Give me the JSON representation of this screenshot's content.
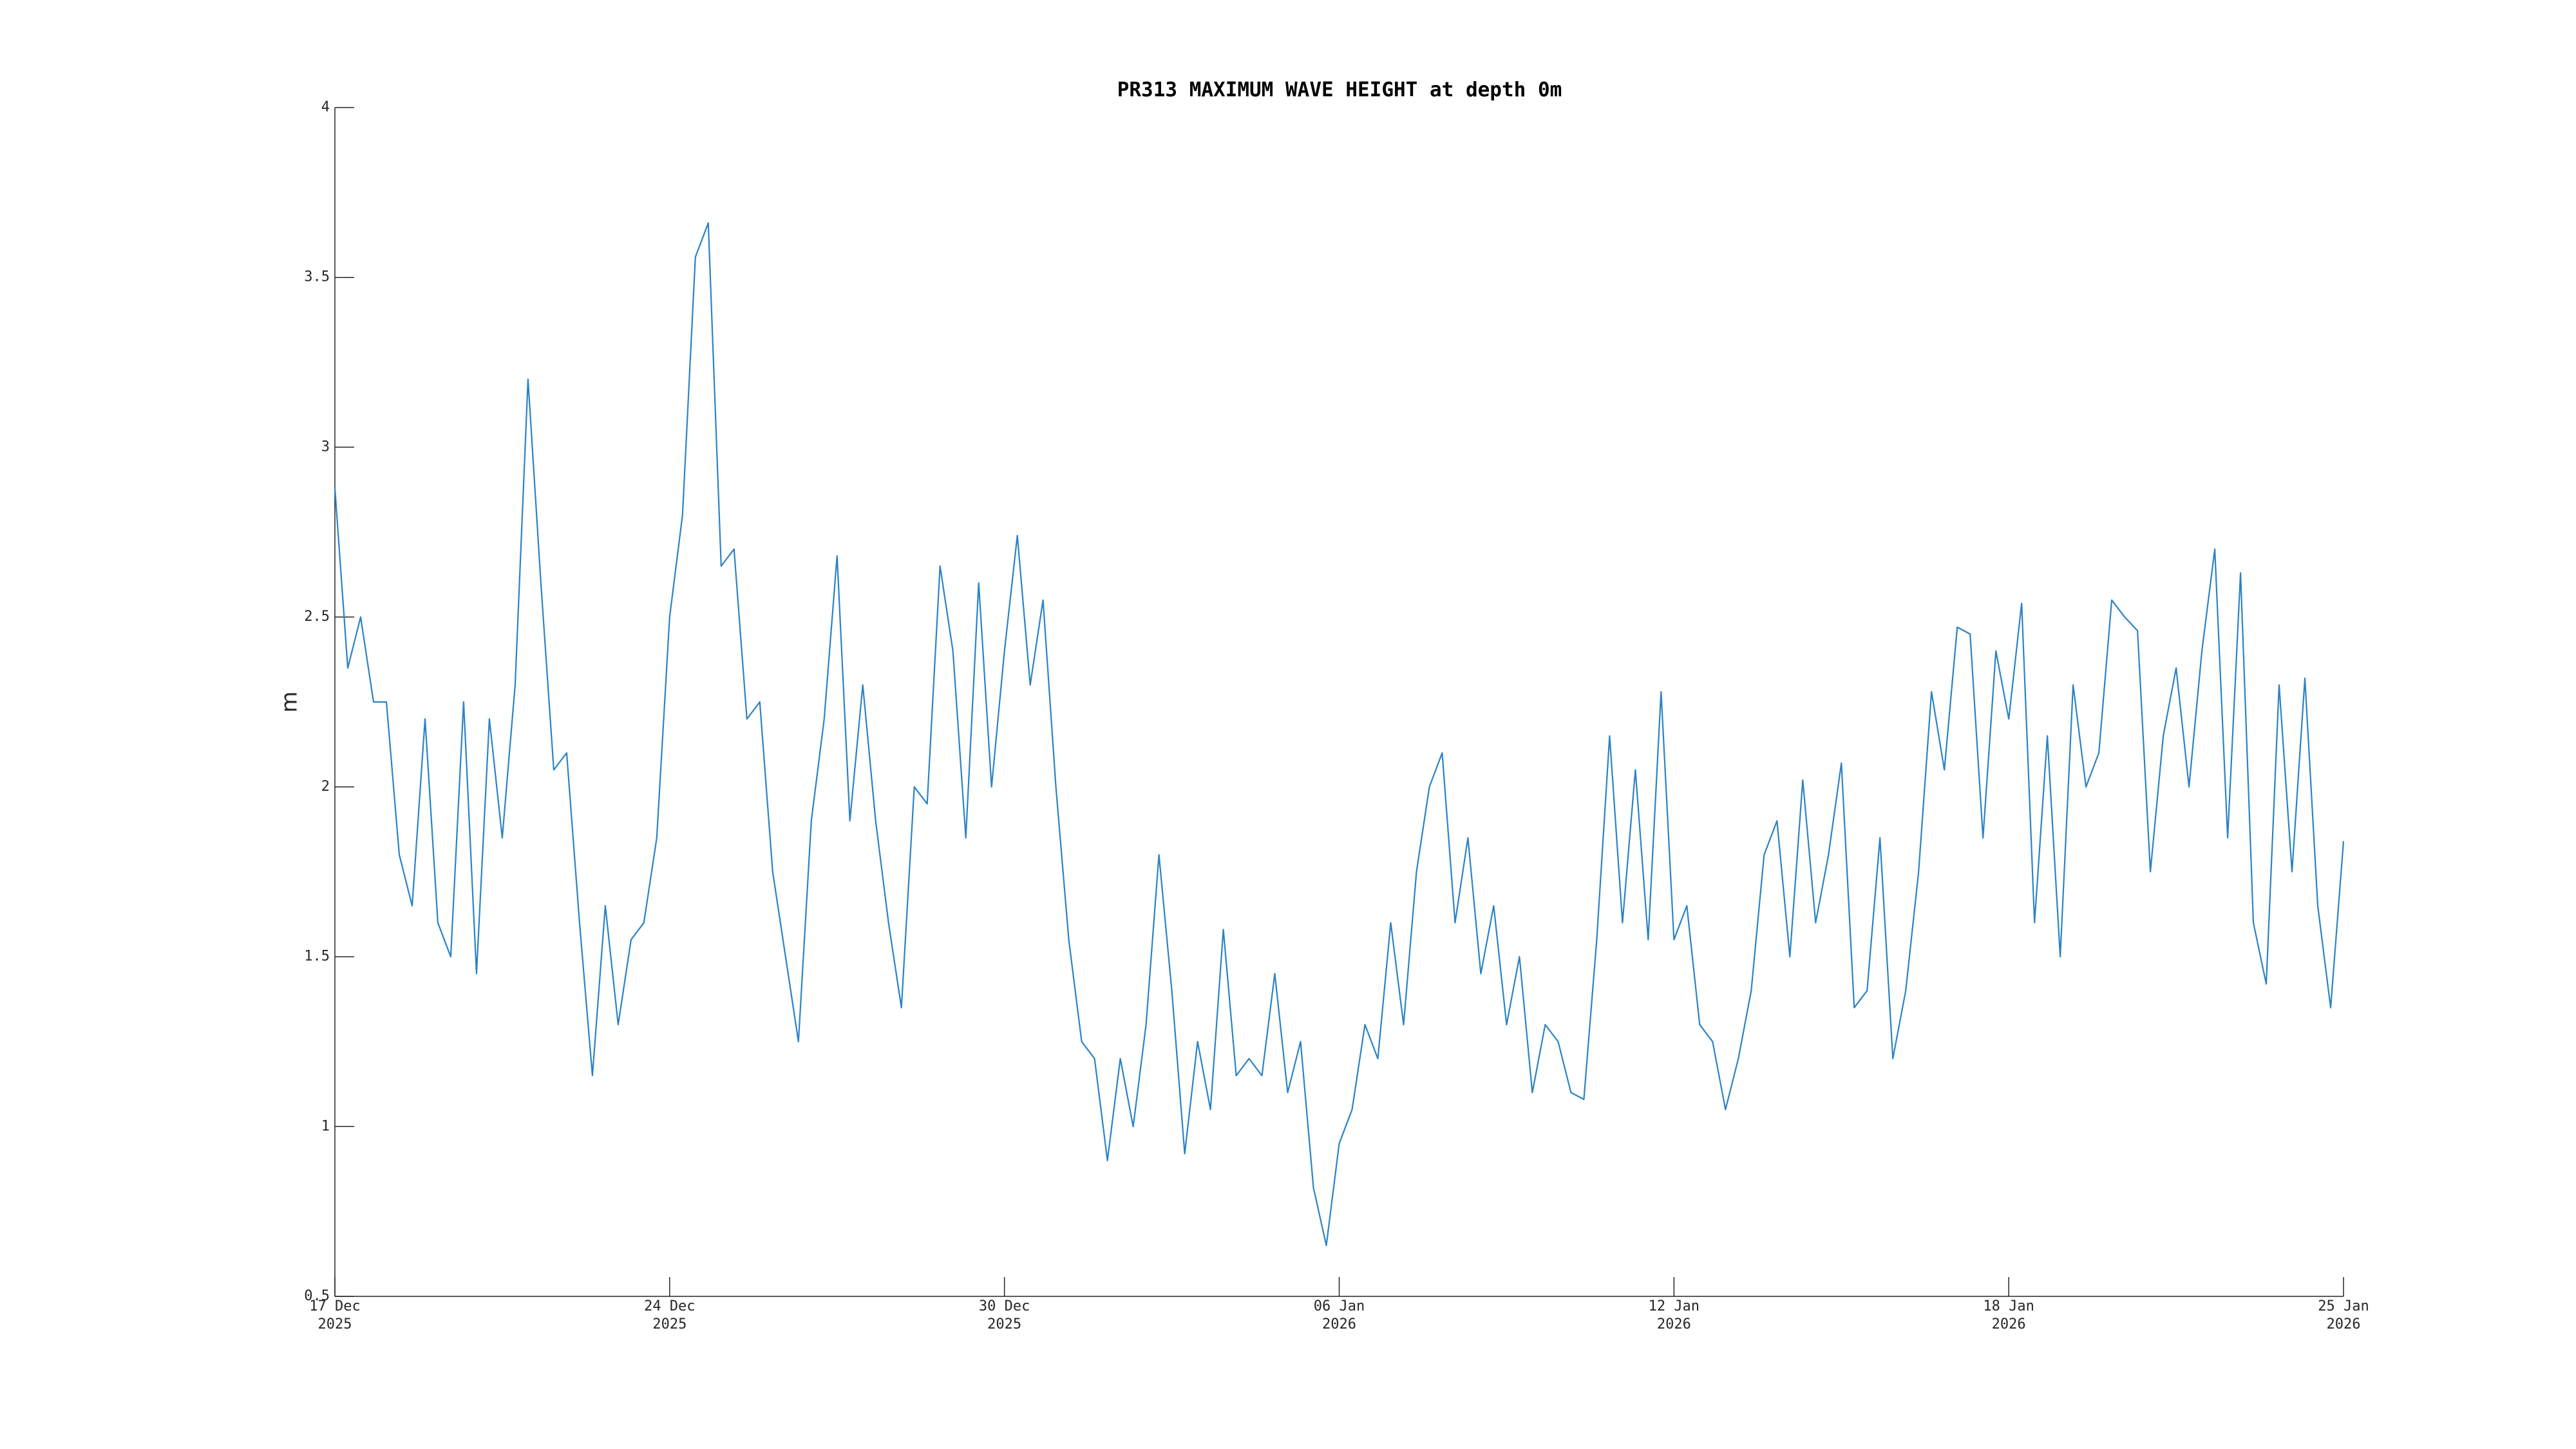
{
  "chart_data": {
    "type": "line",
    "title": "PR313 MAXIMUM WAVE HEIGHT at depth 0m",
    "y_label": "m",
    "xlim": [
      "2025-12-17T00:00",
      "2026-01-25T00:00"
    ],
    "xticks": [
      {
        "value": "2025-12-17T00:00",
        "label": "17 Dec\n2025"
      },
      {
        "value": "2025-12-23T12:00",
        "label": "24 Dec\n2025"
      },
      {
        "value": "2025-12-30T00:00",
        "label": "30 Dec\n2025"
      },
      {
        "value": "2026-01-05T12:00",
        "label": "06 Jan\n2026"
      },
      {
        "value": "2026-01-12T00:00",
        "label": "12 Jan\n2026"
      },
      {
        "value": "2026-01-18T12:00",
        "label": "18 Jan\n2026"
      },
      {
        "value": "2026-01-25T00:00",
        "label": "25 Jan\n2026"
      }
    ],
    "ylim": [
      0.5,
      4
    ],
    "yticks": [
      0.5,
      1,
      1.5,
      2,
      2.5,
      3,
      3.5,
      4
    ],
    "grid": false,
    "x": [
      "2025-12-17T00:00",
      "2025-12-17T06:00",
      "2025-12-17T12:00",
      "2025-12-17T18:00",
      "2025-12-18T00:00",
      "2025-12-18T06:00",
      "2025-12-18T12:00",
      "2025-12-18T18:00",
      "2025-12-19T00:00",
      "2025-12-19T06:00",
      "2025-12-19T12:00",
      "2025-12-19T18:00",
      "2025-12-20T00:00",
      "2025-12-20T06:00",
      "2025-12-20T12:00",
      "2025-12-20T18:00",
      "2025-12-21T00:00",
      "2025-12-21T06:00",
      "2025-12-21T12:00",
      "2025-12-21T18:00",
      "2025-12-22T00:00",
      "2025-12-22T06:00",
      "2025-12-22T12:00",
      "2025-12-22T18:00",
      "2025-12-23T00:00",
      "2025-12-23T06:00",
      "2025-12-23T12:00",
      "2025-12-23T18:00",
      "2025-12-24T00:00",
      "2025-12-24T06:00",
      "2025-12-24T12:00",
      "2025-12-24T18:00",
      "2025-12-25T00:00",
      "2025-12-25T06:00",
      "2025-12-25T12:00",
      "2025-12-25T18:00",
      "2025-12-26T00:00",
      "2025-12-26T06:00",
      "2025-12-26T12:00",
      "2025-12-26T18:00",
      "2025-12-27T00:00",
      "2025-12-27T06:00",
      "2025-12-27T12:00",
      "2025-12-27T18:00",
      "2025-12-28T00:00",
      "2025-12-28T06:00",
      "2025-12-28T12:00",
      "2025-12-28T18:00",
      "2025-12-29T00:00",
      "2025-12-29T06:00",
      "2025-12-29T12:00",
      "2025-12-29T18:00",
      "2025-12-30T00:00",
      "2025-12-30T06:00",
      "2025-12-30T12:00",
      "2025-12-30T18:00",
      "2025-12-31T00:00",
      "2025-12-31T06:00",
      "2025-12-31T12:00",
      "2025-12-31T18:00",
      "2026-01-01T00:00",
      "2026-01-01T06:00",
      "2026-01-01T12:00",
      "2026-01-01T18:00",
      "2026-01-02T00:00",
      "2026-01-02T06:00",
      "2026-01-02T12:00",
      "2026-01-02T18:00",
      "2026-01-03T00:00",
      "2026-01-03T06:00",
      "2026-01-03T12:00",
      "2026-01-03T18:00",
      "2026-01-04T00:00",
      "2026-01-04T06:00",
      "2026-01-04T12:00",
      "2026-01-04T18:00",
      "2026-01-05T00:00",
      "2026-01-05T06:00",
      "2026-01-05T12:00",
      "2026-01-05T18:00",
      "2026-01-06T00:00",
      "2026-01-06T06:00",
      "2026-01-06T12:00",
      "2026-01-06T18:00",
      "2026-01-07T00:00",
      "2026-01-07T06:00",
      "2026-01-07T12:00",
      "2026-01-07T18:00",
      "2026-01-08T00:00",
      "2026-01-08T06:00",
      "2026-01-08T12:00",
      "2026-01-08T18:00",
      "2026-01-09T00:00",
      "2026-01-09T06:00",
      "2026-01-09T12:00",
      "2026-01-09T18:00",
      "2026-01-10T00:00",
      "2026-01-10T06:00",
      "2026-01-10T12:00",
      "2026-01-10T18:00",
      "2026-01-11T00:00",
      "2026-01-11T06:00",
      "2026-01-11T12:00",
      "2026-01-11T18:00",
      "2026-01-12T00:00",
      "2026-01-12T06:00",
      "2026-01-12T12:00",
      "2026-01-12T18:00",
      "2026-01-13T00:00",
      "2026-01-13T06:00",
      "2026-01-13T12:00",
      "2026-01-13T18:00",
      "2026-01-14T00:00",
      "2026-01-14T06:00",
      "2026-01-14T12:00",
      "2026-01-14T18:00",
      "2026-01-15T00:00",
      "2026-01-15T06:00",
      "2026-01-15T12:00",
      "2026-01-15T18:00",
      "2026-01-16T00:00",
      "2026-01-16T06:00",
      "2026-01-16T12:00",
      "2026-01-16T18:00",
      "2026-01-17T00:00",
      "2026-01-17T06:00",
      "2026-01-17T12:00",
      "2026-01-17T18:00",
      "2026-01-18T00:00",
      "2026-01-18T06:00",
      "2026-01-18T12:00",
      "2026-01-18T18:00",
      "2026-01-19T00:00",
      "2026-01-19T06:00",
      "2026-01-19T12:00",
      "2026-01-19T18:00",
      "2026-01-20T00:00",
      "2026-01-20T06:00",
      "2026-01-20T12:00",
      "2026-01-20T18:00",
      "2026-01-21T00:00",
      "2026-01-21T06:00",
      "2026-01-21T12:00",
      "2026-01-21T18:00",
      "2026-01-22T00:00",
      "2026-01-22T06:00",
      "2026-01-22T12:00",
      "2026-01-22T18:00",
      "2026-01-23T00:00",
      "2026-01-23T06:00",
      "2026-01-23T12:00",
      "2026-01-23T18:00",
      "2026-01-24T00:00",
      "2026-01-24T06:00",
      "2026-01-24T12:00",
      "2026-01-24T18:00",
      "2026-01-25T00:00"
    ],
    "series": [
      {
        "color": "#2b83c6",
        "values": [
          2.88,
          2.35,
          2.5,
          2.25,
          2.25,
          1.8,
          1.65,
          2.2,
          1.6,
          1.5,
          2.25,
          1.45,
          2.2,
          1.85,
          2.3,
          3.2,
          2.6,
          2.05,
          2.1,
          1.6,
          1.15,
          1.65,
          1.3,
          1.55,
          1.6,
          1.85,
          2.5,
          2.8,
          3.56,
          3.66,
          2.65,
          2.7,
          2.2,
          2.25,
          1.75,
          1.5,
          1.25,
          1.9,
          2.2,
          2.68,
          1.9,
          2.3,
          1.9,
          1.6,
          1.35,
          2.0,
          1.95,
          2.65,
          2.4,
          1.85,
          2.6,
          2.0,
          2.4,
          2.74,
          2.3,
          2.55,
          2.0,
          1.55,
          1.25,
          1.2,
          0.9,
          1.2,
          1.0,
          1.3,
          1.8,
          1.4,
          0.92,
          1.25,
          1.05,
          1.58,
          1.15,
          1.2,
          1.15,
          1.45,
          1.1,
          1.25,
          0.82,
          0.65,
          0.95,
          1.05,
          1.3,
          1.2,
          1.6,
          1.3,
          1.75,
          2.0,
          2.1,
          1.6,
          1.85,
          1.45,
          1.65,
          1.3,
          1.5,
          1.1,
          1.3,
          1.25,
          1.1,
          1.08,
          1.55,
          2.15,
          1.6,
          2.05,
          1.55,
          2.28,
          1.55,
          1.65,
          1.3,
          1.25,
          1.05,
          1.2,
          1.4,
          1.8,
          1.9,
          1.5,
          2.02,
          1.6,
          1.8,
          2.07,
          1.35,
          1.4,
          1.85,
          1.2,
          1.4,
          1.75,
          2.28,
          2.05,
          2.47,
          2.45,
          1.85,
          2.4,
          2.2,
          2.54,
          1.6,
          2.15,
          1.5,
          2.3,
          2.0,
          2.1,
          2.55,
          2.5,
          2.46,
          1.75,
          2.15,
          2.35,
          2.0,
          2.4,
          2.7,
          1.85,
          2.63,
          1.6,
          1.42,
          2.3,
          1.75,
          2.32,
          1.65,
          1.35,
          1.84
        ]
      }
    ]
  }
}
